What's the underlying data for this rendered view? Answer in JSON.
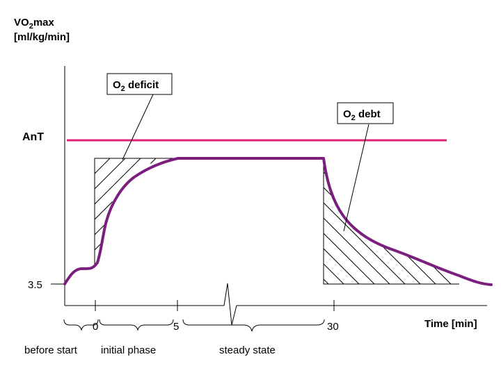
{
  "y_axis": {
    "label_prefix": "VO",
    "label_subscript": "2",
    "label_suffix": "max",
    "unit": "[ml/kg/min]",
    "anaerobic_threshold_label": "AnT",
    "baseline_value": "3.5"
  },
  "x_axis": {
    "label": "Time [min]",
    "ticks": [
      "0",
      "5",
      "30"
    ]
  },
  "callouts": {
    "deficit": {
      "prefix": "O",
      "subscript": "2",
      "text": " deficit"
    },
    "debt": {
      "prefix": "O",
      "subscript": "2",
      "text": " debt"
    }
  },
  "phases": [
    "before start",
    "initial phase",
    "steady state"
  ],
  "colors": {
    "curve": "#7B1F7E",
    "threshold": "#E0247A",
    "axis": "#000000"
  }
}
